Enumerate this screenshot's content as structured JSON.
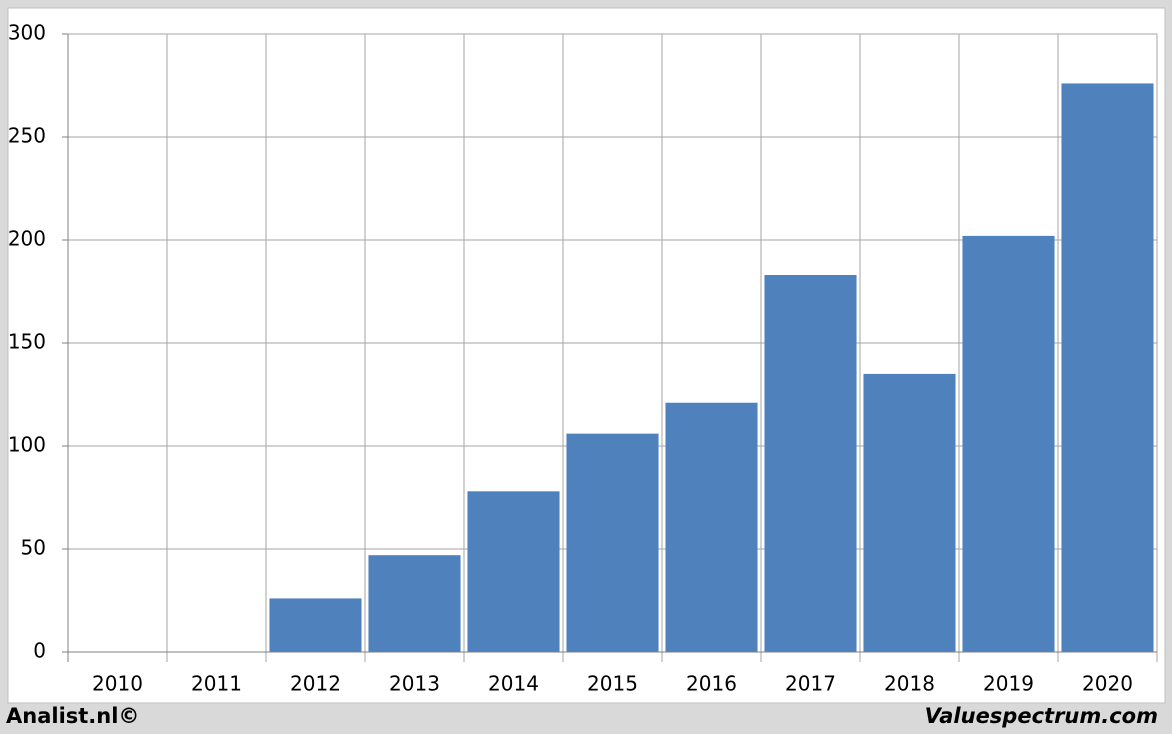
{
  "chart_data": {
    "type": "bar",
    "categories": [
      "2010",
      "2011",
      "2012",
      "2013",
      "2014",
      "2015",
      "2016",
      "2017",
      "2018",
      "2019",
      "2020"
    ],
    "values": [
      null,
      null,
      26,
      47,
      78,
      106,
      121,
      183,
      135,
      202,
      276
    ],
    "color": "#4f81bd",
    "ylim": [
      0,
      300
    ],
    "yticks": [
      0,
      50,
      100,
      150,
      200,
      250,
      300
    ],
    "grid": true,
    "source_left": "Analist.nl©",
    "source_right": "Valuespectrum.com"
  }
}
